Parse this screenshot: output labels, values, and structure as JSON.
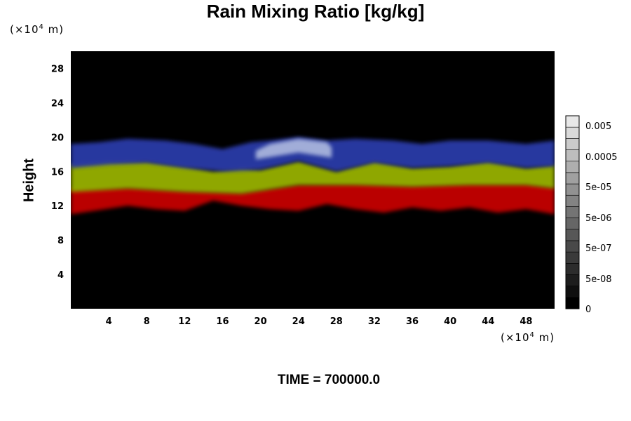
{
  "chart_data": {
    "type": "heatmap",
    "title": "Rain Mixing Ratio [kg/kg]",
    "ylabel": "Height",
    "x_unit_prefix": "(×10",
    "x_unit_exp": "4",
    "x_unit_suffix": " m)",
    "y_unit_prefix": "(×10",
    "y_unit_exp": "4",
    "y_unit_suffix": " m)",
    "xlim": [
      0,
      51
    ],
    "ylim": [
      0,
      30
    ],
    "x_ticks": [
      4,
      8,
      12,
      16,
      20,
      24,
      28,
      32,
      36,
      40,
      44,
      48
    ],
    "y_ticks": [
      4,
      8,
      12,
      16,
      20,
      24,
      28
    ],
    "colorbar": {
      "tick_labels": [
        "0.005",
        "0.0005",
        "5e-05",
        "5e-06",
        "5e-07",
        "5e-08",
        "0"
      ],
      "tick_values": [
        0.005,
        0.0005,
        5e-05,
        5e-06,
        5e-07,
        5e-08,
        0
      ],
      "levels": 17
    },
    "bands": [
      {
        "name": "red",
        "color": "#c40000",
        "lower": [
          [
            0,
            11
          ],
          [
            3,
            11.5
          ],
          [
            6,
            12
          ],
          [
            9,
            11.6
          ],
          [
            12,
            11.4
          ],
          [
            15,
            12.6
          ],
          [
            18,
            12
          ],
          [
            21,
            11.6
          ],
          [
            24,
            11.4
          ],
          [
            27,
            12.2
          ],
          [
            30,
            11.6
          ],
          [
            33,
            11.2
          ],
          [
            36,
            11.8
          ],
          [
            39,
            11.4
          ],
          [
            42,
            11.8
          ],
          [
            45,
            11.2
          ],
          [
            48,
            11.6
          ],
          [
            51,
            11
          ]
        ],
        "upper": [
          [
            0,
            14
          ],
          [
            6,
            14.2
          ],
          [
            12,
            13.8
          ],
          [
            18,
            13.6
          ],
          [
            24,
            14.5
          ],
          [
            30,
            14.6
          ],
          [
            36,
            14.4
          ],
          [
            42,
            14.6
          ],
          [
            48,
            14.6
          ],
          [
            51,
            14.2
          ]
        ]
      },
      {
        "name": "yellow-green",
        "color": "#97b000",
        "lower": [
          [
            0,
            13.6
          ],
          [
            6,
            14
          ],
          [
            12,
            13.6
          ],
          [
            18,
            13.4
          ],
          [
            24,
            14.4
          ],
          [
            30,
            14.4
          ],
          [
            36,
            14.2
          ],
          [
            42,
            14.4
          ],
          [
            48,
            14.4
          ],
          [
            51,
            14
          ]
        ],
        "upper": [
          [
            0,
            16.8
          ],
          [
            4,
            17.2
          ],
          [
            8,
            17.2
          ],
          [
            12,
            16.6
          ],
          [
            15,
            16
          ],
          [
            18,
            16.4
          ],
          [
            20,
            16.2
          ],
          [
            24,
            17.2
          ],
          [
            28,
            16
          ],
          [
            32,
            17.2
          ],
          [
            36,
            16.4
          ],
          [
            40,
            16.6
          ],
          [
            44,
            17.2
          ],
          [
            48,
            16.4
          ],
          [
            51,
            16.8
          ]
        ]
      },
      {
        "name": "blue",
        "color": "#2a3aa8",
        "lower": [
          [
            0,
            16.4
          ],
          [
            4,
            16.8
          ],
          [
            8,
            17
          ],
          [
            12,
            16.4
          ],
          [
            16,
            16
          ],
          [
            20,
            16.2
          ],
          [
            24,
            17.2
          ],
          [
            28,
            16
          ],
          [
            32,
            17
          ],
          [
            36,
            16.4
          ],
          [
            40,
            16.6
          ],
          [
            44,
            17
          ],
          [
            48,
            16.4
          ],
          [
            51,
            16.6
          ]
        ],
        "upper": [
          [
            0,
            19.2
          ],
          [
            3,
            19.4
          ],
          [
            6,
            19.8
          ],
          [
            10,
            19.6
          ],
          [
            13,
            19.2
          ],
          [
            16,
            18.6
          ],
          [
            19,
            19.4
          ],
          [
            21,
            19.6
          ],
          [
            24,
            20
          ],
          [
            27,
            19.6
          ],
          [
            30,
            19.8
          ],
          [
            34,
            19.6
          ],
          [
            37,
            19.2
          ],
          [
            40,
            19.6
          ],
          [
            44,
            19.6
          ],
          [
            48,
            19.2
          ],
          [
            51,
            19.6
          ]
        ]
      },
      {
        "name": "pale-blue",
        "color": "#a8b4dc",
        "lower": [
          [
            19.5,
            17.4
          ],
          [
            24,
            18.2
          ],
          [
            27.5,
            17.6
          ]
        ],
        "upper": [
          [
            19.5,
            18.4
          ],
          [
            21,
            19.2
          ],
          [
            24,
            19.8
          ],
          [
            27,
            19.4
          ],
          [
            27.5,
            18.8
          ]
        ]
      }
    ]
  }
}
